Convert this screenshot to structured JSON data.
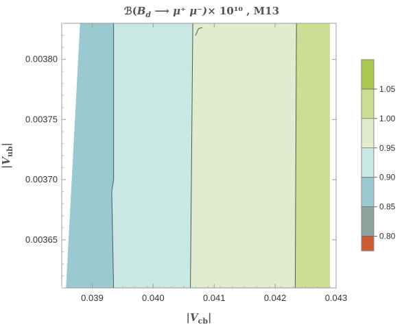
{
  "chart_data": {
    "type": "contour",
    "title": "ℬ(B_d ⟶ μ⁺ μ⁻)× 10¹⁰ , M13",
    "xlabel": "|V_cb|",
    "ylabel": "|V_ub|",
    "xlim": [
      0.0385,
      0.043
    ],
    "ylim": [
      0.00361,
      0.00383
    ],
    "x_ticks": [
      {
        "value": 0.039,
        "label": "0.039"
      },
      {
        "value": 0.04,
        "label": "0.040"
      },
      {
        "value": 0.041,
        "label": "0.041"
      },
      {
        "value": 0.042,
        "label": "0.042"
      },
      {
        "value": 0.043,
        "label": "0.043"
      }
    ],
    "y_ticks": [
      {
        "value": 0.00365,
        "label": "0.00365"
      },
      {
        "value": 0.0037,
        "label": "0.00370"
      },
      {
        "value": 0.00375,
        "label": "0.00375"
      },
      {
        "value": 0.0038,
        "label": "0.00380"
      }
    ],
    "data_domain": {
      "x_top": [
        0.0388,
        0.0429
      ],
      "x_bottom": [
        0.03857,
        0.0429
      ],
      "y": [
        0.00361,
        0.00383
      ]
    },
    "contours": [
      {
        "level": 0.9,
        "points": [
          [
            0.03935,
            0.00383
          ],
          [
            0.03935,
            0.0037
          ],
          [
            0.03932,
            0.00369
          ],
          [
            0.03935,
            0.00361
          ]
        ]
      },
      {
        "level": 0.95,
        "points": [
          [
            0.04065,
            0.00383
          ],
          [
            0.04061,
            0.00361
          ]
        ]
      },
      {
        "level": 1.0,
        "points": [
          [
            0.04235,
            0.00383
          ],
          [
            0.04233,
            0.00361
          ]
        ]
      }
    ],
    "regions": [
      {
        "range": "0.85-0.90",
        "color": "#9ac9d0"
      },
      {
        "range": "0.90-0.95",
        "color": "#c9e7e3"
      },
      {
        "range": "0.95-1.00",
        "color": "#e1eccf"
      },
      {
        "range": "1.00-1.05",
        "color": "#cddd93"
      }
    ],
    "legend": {
      "placement": "right",
      "ticks": [
        "0.80",
        "0.85",
        "0.90",
        "0.95",
        "1.00",
        "1.05"
      ],
      "bins": [
        {
          "from": 0.775,
          "to": 0.8,
          "color": "#cd5b33"
        },
        {
          "from": 0.8,
          "to": 0.85,
          "color": "#8ea29e"
        },
        {
          "from": 0.85,
          "to": 0.9,
          "color": "#9ac9d0"
        },
        {
          "from": 0.9,
          "to": 0.95,
          "color": "#c9e7e3"
        },
        {
          "from": 0.95,
          "to": 1.0,
          "color": "#e1eccf"
        },
        {
          "from": 1.0,
          "to": 1.05,
          "color": "#cddd93"
        },
        {
          "from": 1.05,
          "to": 1.1,
          "color": "#a9c852"
        }
      ],
      "range": [
        0.775,
        1.1
      ]
    }
  }
}
